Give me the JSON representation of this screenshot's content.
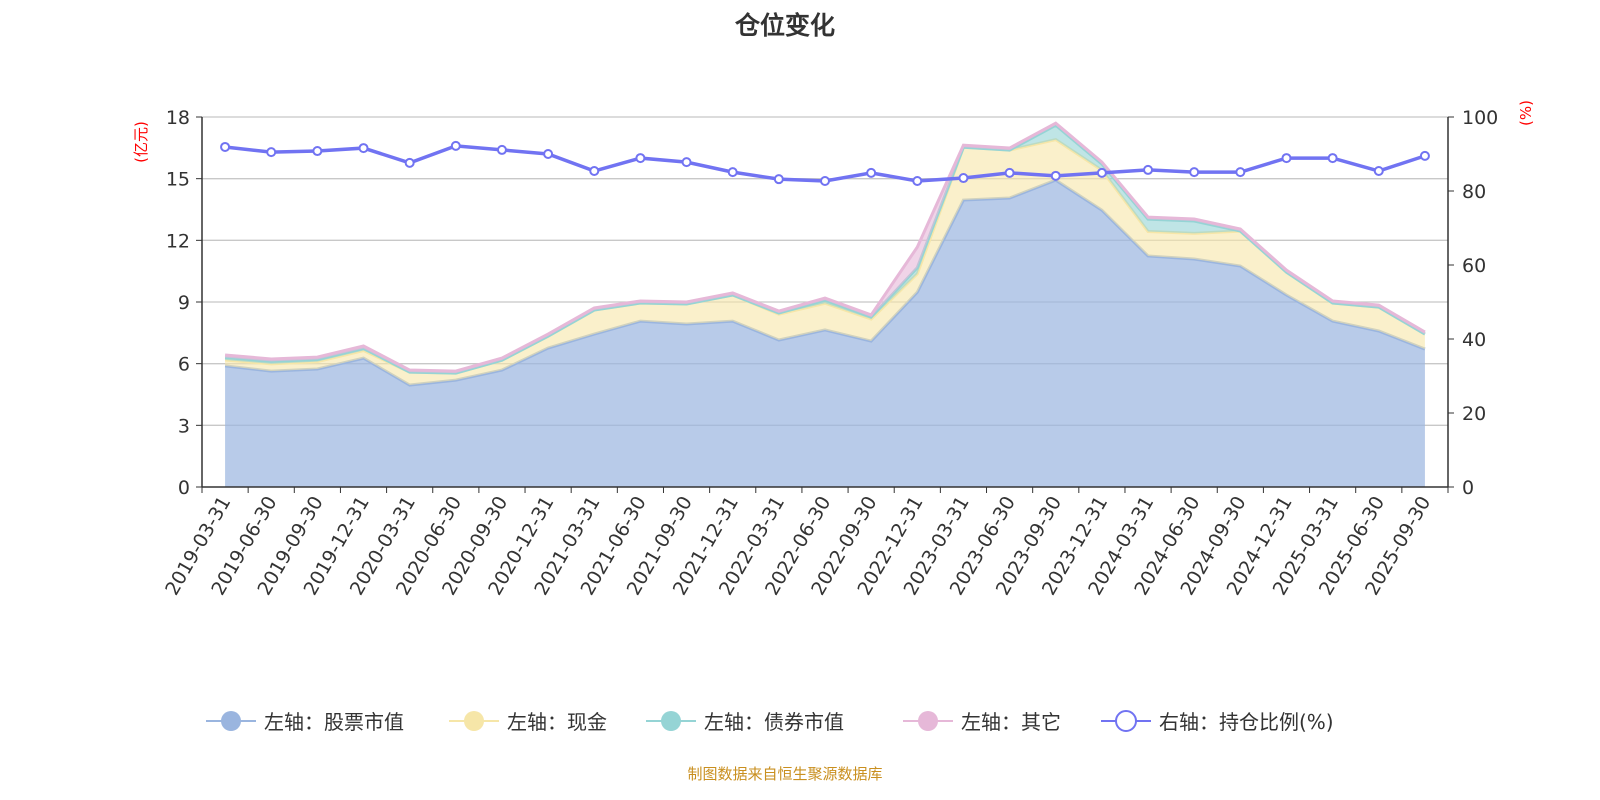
{
  "chart_data": {
    "type": "area",
    "title": "仓位变化",
    "stacked": true,
    "categories": [
      "2019-03-31",
      "2019-06-30",
      "2019-09-30",
      "2019-12-31",
      "2020-03-31",
      "2020-06-30",
      "2020-09-30",
      "2020-12-31",
      "2021-03-31",
      "2021-06-30",
      "2021-09-30",
      "2021-12-31",
      "2022-03-31",
      "2022-06-30",
      "2022-09-30",
      "2022-12-31",
      "2023-03-31",
      "2023-06-30",
      "2023-09-30",
      "2023-12-31",
      "2024-03-31",
      "2024-06-30",
      "2024-09-30",
      "2024-12-31",
      "2025-03-31",
      "2025-06-30",
      "2025-09-30"
    ],
    "left_axis": {
      "label": "(亿元)",
      "ylim": [
        0,
        18
      ],
      "ticks": [
        0,
        3,
        6,
        9,
        12,
        15,
        18
      ],
      "label_color": "#ff0000"
    },
    "right_axis": {
      "label": "(%)",
      "ylim": [
        0,
        100
      ],
      "ticks": [
        0,
        20,
        40,
        60,
        80,
        100
      ],
      "label_color": "#ff0000"
    },
    "grid": true,
    "legend_position": "bottom",
    "series": [
      {
        "name": "左轴：股票市值",
        "axis": "left",
        "color": "#9ab5df",
        "values": [
          5.89,
          5.64,
          5.74,
          6.27,
          4.96,
          5.2,
          5.69,
          6.76,
          7.44,
          8.07,
          7.93,
          8.07,
          7.15,
          7.64,
          7.1,
          9.48,
          13.96,
          14.06,
          14.93,
          13.47,
          11.24,
          11.09,
          10.75,
          9.34,
          8.07,
          7.59,
          6.71
        ]
      },
      {
        "name": "左轴：现金",
        "axis": "left",
        "color": "#f6e6a8",
        "values": [
          0.29,
          0.35,
          0.36,
          0.37,
          0.63,
          0.34,
          0.48,
          0.58,
          1.17,
          0.88,
          0.97,
          1.27,
          1.26,
          1.3,
          1.07,
          0.89,
          2.57,
          2.33,
          1.97,
          1.94,
          1.19,
          1.25,
          1.7,
          1.11,
          0.88,
          1.16,
          0.73
        ]
      },
      {
        "name": "左轴：债券市值",
        "axis": "left",
        "color": "#95d4d5",
        "values": [
          0.12,
          0.12,
          0.1,
          0.1,
          0,
          0,
          0,
          0,
          0,
          0,
          0,
          0,
          0.05,
          0.15,
          0.1,
          0.3,
          0,
          0,
          0.7,
          0.3,
          0.6,
          0.6,
          0,
          0,
          0,
          0,
          0
        ]
      },
      {
        "name": "左轴：其它",
        "axis": "left",
        "color": "#e6b8d8",
        "values": [
          0.12,
          0.12,
          0.12,
          0.12,
          0.1,
          0.1,
          0.1,
          0.1,
          0.1,
          0.1,
          0.1,
          0.1,
          0.1,
          0.1,
          0.1,
          1.0,
          0.1,
          0.1,
          0.1,
          0.1,
          0.1,
          0.1,
          0.1,
          0.1,
          0.1,
          0.1,
          0.1
        ]
      },
      {
        "name": "右轴：持仓比例(%)",
        "axis": "right",
        "type": "line",
        "color": "#7173f2",
        "values": [
          91.9,
          90.5,
          90.8,
          91.6,
          87.6,
          92.2,
          91.1,
          90.0,
          85.4,
          88.9,
          87.8,
          85.1,
          83.2,
          82.7,
          84.9,
          82.7,
          83.5,
          84.9,
          84.1,
          84.9,
          85.7,
          85.1,
          85.1,
          88.9,
          88.9,
          85.4,
          89.5
        ]
      }
    ]
  },
  "footer": "制图数据来自恒生聚源数据库"
}
